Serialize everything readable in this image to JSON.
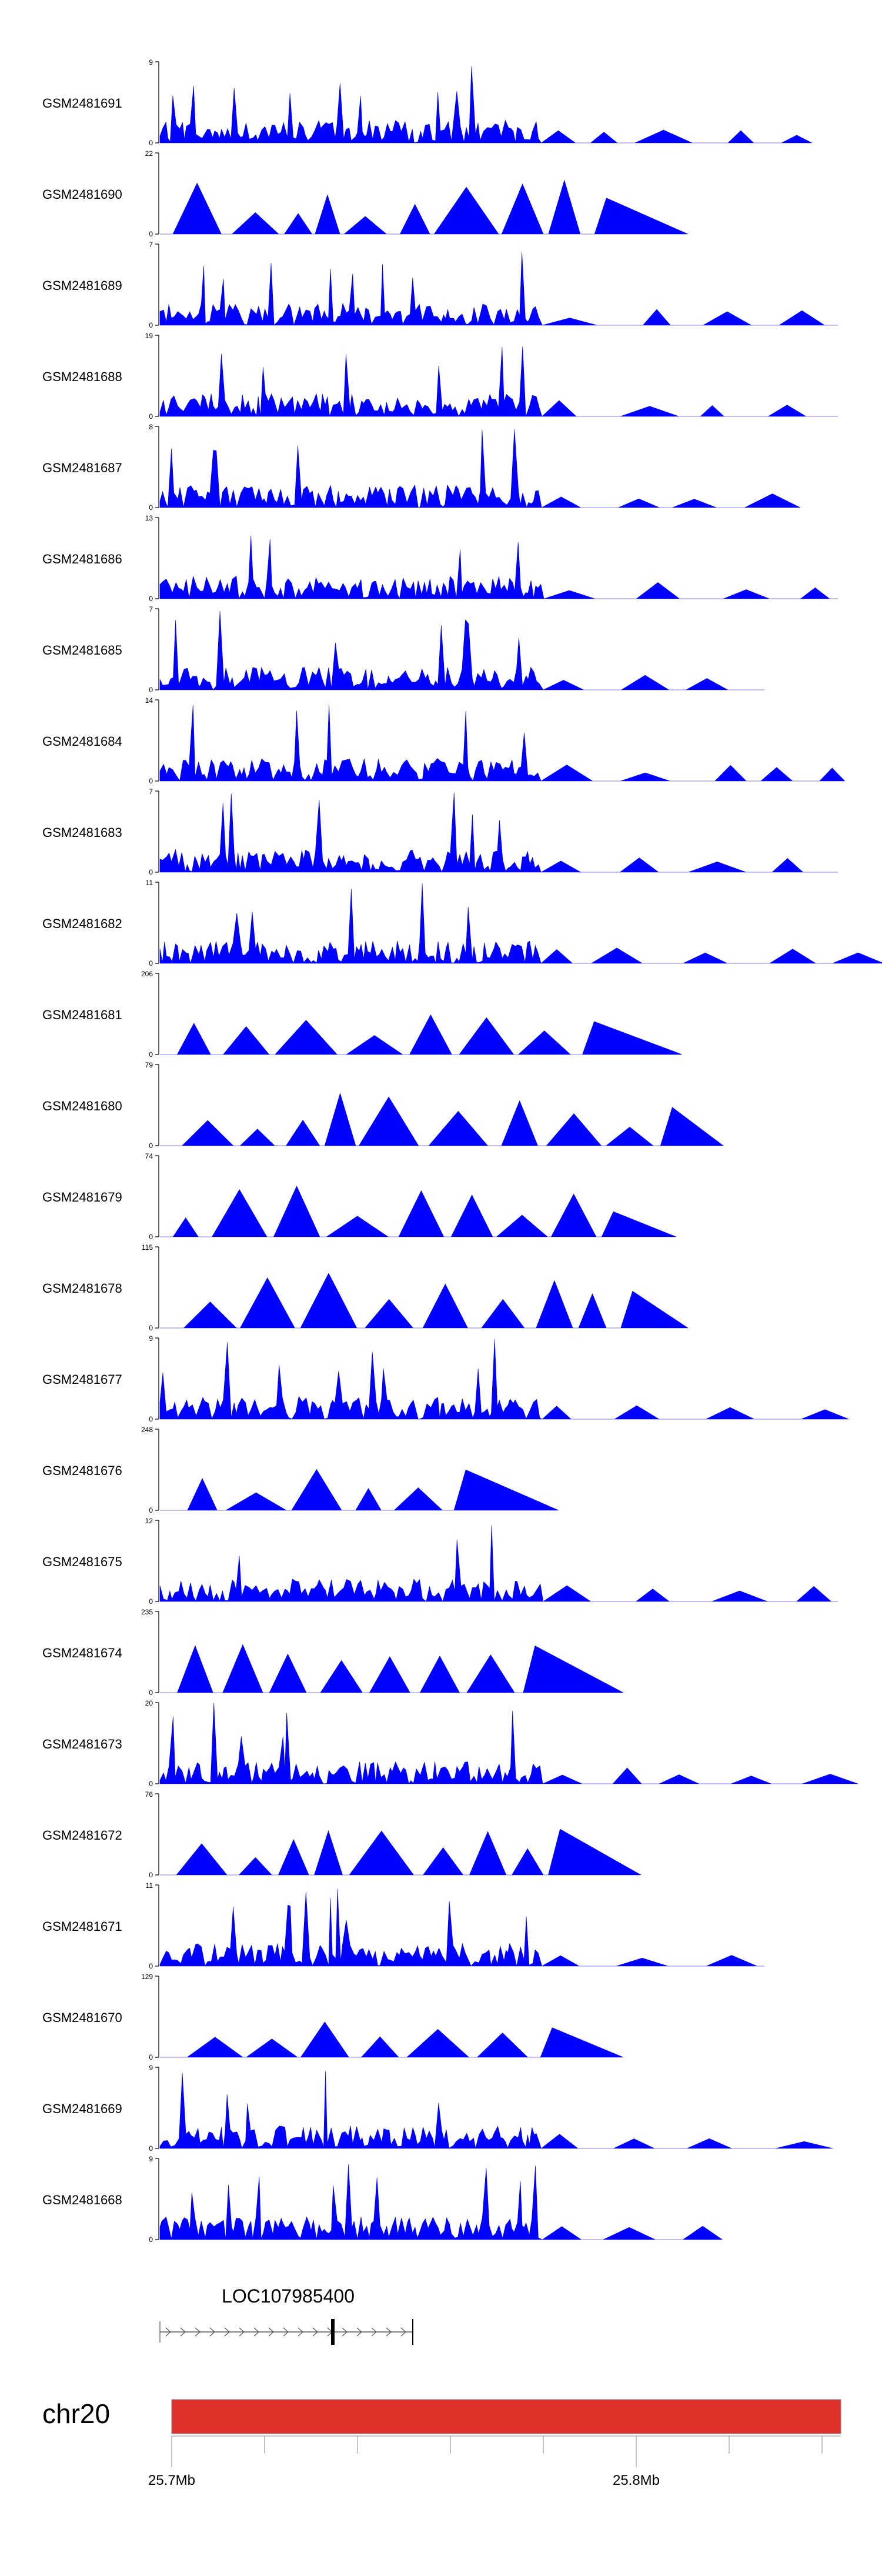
{
  "chart_data": {
    "type": "area",
    "color": "#0000FF",
    "tracks": [
      {
        "name": "GSM2481691",
        "ymax": "9",
        "ymin": "0"
      },
      {
        "name": "GSM2481690",
        "ymax": "22",
        "ymin": "0"
      },
      {
        "name": "GSM2481689",
        "ymax": "7",
        "ymin": "0"
      },
      {
        "name": "GSM2481688",
        "ymax": "19",
        "ymin": "0"
      },
      {
        "name": "GSM2481687",
        "ymax": "8",
        "ymin": "0"
      },
      {
        "name": "GSM2481686",
        "ymax": "13",
        "ymin": "0"
      },
      {
        "name": "GSM2481685",
        "ymax": "7",
        "ymin": "0"
      },
      {
        "name": "GSM2481684",
        "ymax": "14",
        "ymin": "0"
      },
      {
        "name": "GSM2481683",
        "ymax": "7",
        "ymin": "0"
      },
      {
        "name": "GSM2481682",
        "ymax": "11",
        "ymin": "0"
      },
      {
        "name": "GSM2481681",
        "ymax": "206",
        "ymin": "0"
      },
      {
        "name": "GSM2481680",
        "ymax": "79",
        "ymin": "0"
      },
      {
        "name": "GSM2481679",
        "ymax": "74",
        "ymin": "0"
      },
      {
        "name": "GSM2481678",
        "ymax": "115",
        "ymin": "0"
      },
      {
        "name": "GSM2481677",
        "ymax": "9",
        "ymin": "0"
      },
      {
        "name": "GSM2481676",
        "ymax": "248",
        "ymin": "0"
      },
      {
        "name": "GSM2481675",
        "ymax": "12",
        "ymin": "0"
      },
      {
        "name": "GSM2481674",
        "ymax": "235",
        "ymin": "0"
      },
      {
        "name": "GSM2481673",
        "ymax": "20",
        "ymin": "0"
      },
      {
        "name": "GSM2481672",
        "ymax": "76",
        "ymin": "0"
      },
      {
        "name": "GSM2481671",
        "ymax": "11",
        "ymin": "0"
      },
      {
        "name": "GSM2481670",
        "ymax": "129",
        "ymin": "0"
      },
      {
        "name": "GSM2481669",
        "ymax": "9",
        "ymin": "0"
      },
      {
        "name": "GSM2481668",
        "ymax": "9",
        "ymin": "0"
      }
    ],
    "gene": {
      "name": "LOC107985400",
      "color": "#000000"
    },
    "chromosome": {
      "name": "chr20",
      "color": "#E0302A"
    },
    "x_axis": {
      "tick_labels": [
        "25.7Mb",
        "25.8Mb"
      ]
    }
  }
}
